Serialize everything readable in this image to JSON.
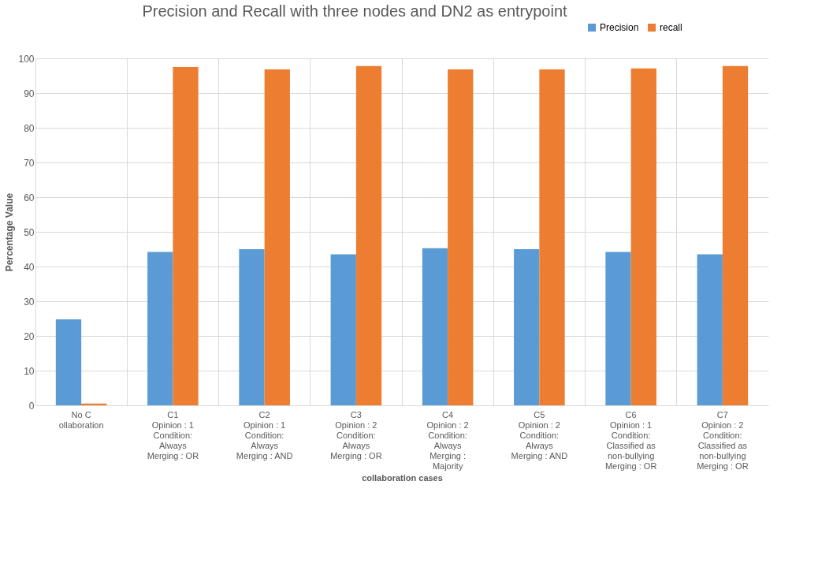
{
  "chart_data": {
    "type": "bar",
    "title": "Precision and Recall with three nodes and DN2 as entrypoint",
    "xlabel": "collaboration cases",
    "ylabel": "Percentage Value",
    "categories": [
      "No C\nollaboration",
      "C1\nOpinion : 1\nCondition:\nAlways\nMerging : OR",
      "C2\nOpinion : 1\nCondition:\nAlways\nMerging : AND",
      "C3\nOpinion : 2\nCondition:\nAlways\nMerging : OR",
      "C4\nOpinion : 2\nCondition:\nAlways\nMerging :\nMajority",
      "C5\nOpinion : 2\nCondition:\nAlways\nMerging : AND",
      "C6\nOpinion : 1\nCondition:\nClassified as\nnon-bullying\nMerging : OR",
      "C7\nOpinion : 2\nCondition:\nClassified as\nnon-bullying\nMerging : OR"
    ],
    "series": [
      {
        "name": "Precision",
        "color": "#5b9bd5",
        "values": [
          24.8,
          44.2,
          45.0,
          43.5,
          45.3,
          45.0,
          44.2,
          43.5
        ]
      },
      {
        "name": "recall",
        "color": "#ed7d31",
        "values": [
          0.5,
          97.5,
          96.8,
          97.8,
          96.8,
          96.8,
          97.1,
          97.8
        ]
      }
    ],
    "ylim": [
      0,
      100
    ],
    "yticks": [
      0,
      10,
      20,
      30,
      40,
      50,
      60,
      70,
      80,
      90,
      100
    ],
    "grid": true,
    "legend": "top right"
  }
}
